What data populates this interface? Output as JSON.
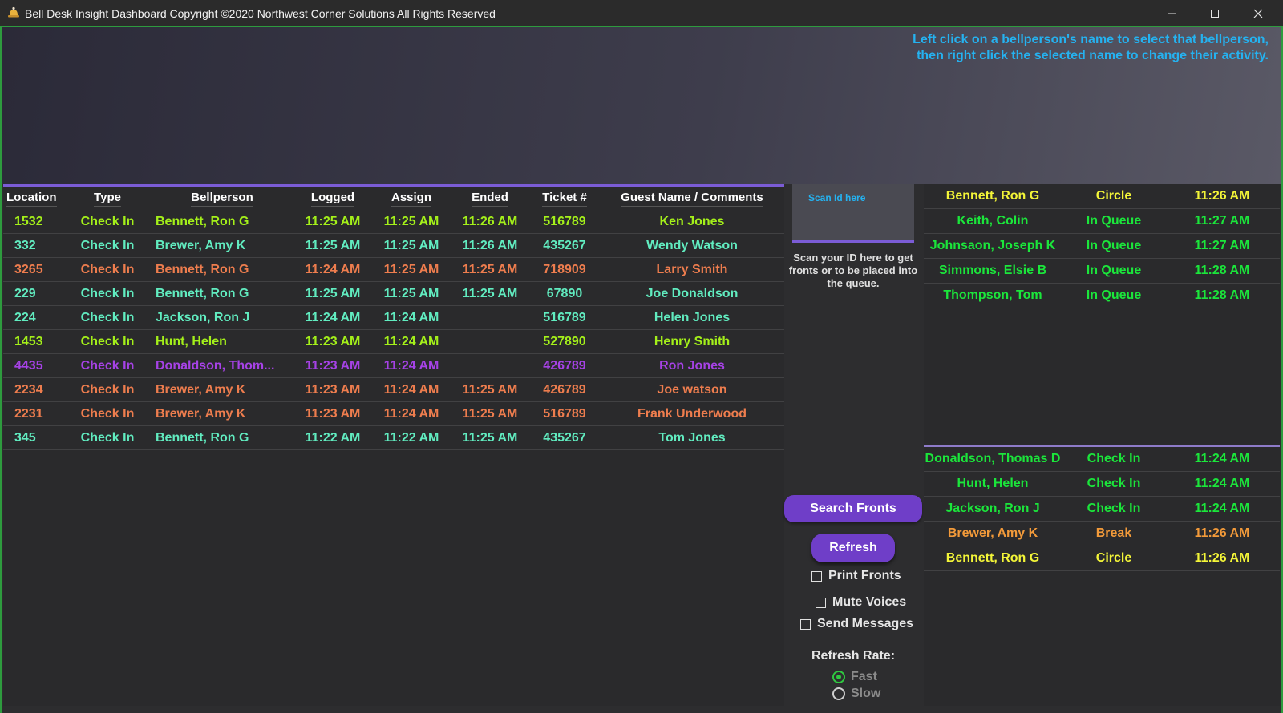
{
  "window": {
    "title": "Bell Desk Insight Dashboard Copyright ©2020 Northwest Corner Solutions All Rights Reserved",
    "app_icon": "bell-icon",
    "controls": [
      "minimize-icon",
      "maximize-icon",
      "close-icon"
    ]
  },
  "instructions": {
    "line1": "Left click on a bellperson's name to select that bellperson,",
    "line2": "then right click the selected name to change their activity."
  },
  "grid": {
    "columns": [
      "Location",
      "Type",
      "Bellperson",
      "Logged",
      "Assign",
      "Ended",
      "Ticket #",
      "Guest Name / Comments"
    ],
    "rows": [
      {
        "location": "1532",
        "type": "Check In",
        "bellperson": "Bennett, Ron G",
        "logged": "11:25 AM",
        "assign": "11:25 AM",
        "ended": "11:26 AM",
        "ticket": "516789",
        "guest": "Ken Jones",
        "color": "lime"
      },
      {
        "location": "332",
        "type": "Check In",
        "bellperson": "Brewer, Amy K",
        "logged": "11:25 AM",
        "assign": "11:25 AM",
        "ended": "11:26 AM",
        "ticket": "435267",
        "guest": "Wendy Watson",
        "color": "aqua"
      },
      {
        "location": "3265",
        "type": "Check In",
        "bellperson": "Bennett, Ron G",
        "logged": "11:24 AM",
        "assign": "11:25 AM",
        "ended": "11:25 AM",
        "ticket": "718909",
        "guest": "Larry Smith",
        "color": "orange"
      },
      {
        "location": "229",
        "type": "Check In",
        "bellperson": "Bennett, Ron G",
        "logged": "11:25 AM",
        "assign": "11:25 AM",
        "ended": "11:25 AM",
        "ticket": "67890",
        "guest": "Joe Donaldson",
        "color": "aqua"
      },
      {
        "location": "224",
        "type": "Check In",
        "bellperson": "Jackson, Ron J",
        "logged": "11:24 AM",
        "assign": "11:24 AM",
        "ended": "",
        "ticket": "516789",
        "guest": "Helen Jones",
        "color": "aqua"
      },
      {
        "location": "1453",
        "type": "Check In",
        "bellperson": "Hunt, Helen",
        "logged": "11:23 AM",
        "assign": "11:24 AM",
        "ended": "",
        "ticket": "527890",
        "guest": "Henry Smith",
        "color": "lime"
      },
      {
        "location": "4435",
        "type": "Check In",
        "bellperson": "Donaldson, Thom...",
        "logged": "11:23 AM",
        "assign": "11:24 AM",
        "ended": "",
        "ticket": "426789",
        "guest": "Ron Jones",
        "color": "purple"
      },
      {
        "location": "2234",
        "type": "Check In",
        "bellperson": "Brewer, Amy K",
        "logged": "11:23 AM",
        "assign": "11:24 AM",
        "ended": "11:25 AM",
        "ticket": "426789",
        "guest": "Joe watson",
        "color": "orange"
      },
      {
        "location": "2231",
        "type": "Check In",
        "bellperson": "Brewer, Amy K",
        "logged": "11:23 AM",
        "assign": "11:24 AM",
        "ended": "11:25 AM",
        "ticket": "516789",
        "guest": "Frank Underwood",
        "color": "orange"
      },
      {
        "location": "345",
        "type": "Check In",
        "bellperson": "Bennett, Ron G",
        "logged": "11:22 AM",
        "assign": "11:22 AM",
        "ended": "11:25 AM",
        "ticket": "435267",
        "guest": "Tom Jones",
        "color": "aqua"
      }
    ]
  },
  "scan": {
    "placeholder": "Scan Id here",
    "help": "Scan your ID here to get fronts or to be placed into the queue."
  },
  "buttons": {
    "search_fronts": "Search Fronts",
    "refresh": "Refresh"
  },
  "options": {
    "print_fronts": "Print Fronts",
    "mute_voices": "Mute Voices",
    "send_messages": "Send Messages",
    "refresh_rate_label": "Refresh Rate:",
    "fast": "Fast",
    "slow": "Slow",
    "selected_rate": "Fast"
  },
  "queue": [
    {
      "name": "Bennett, Ron G",
      "activity": "Circle",
      "time": "11:26 AM",
      "color": "yellow"
    },
    {
      "name": "Keith, Colin",
      "activity": "In Queue",
      "time": "11:27 AM",
      "color": "green"
    },
    {
      "name": "Johnsaon, Joseph K",
      "activity": "In Queue",
      "time": "11:27 AM",
      "color": "green"
    },
    {
      "name": "Simmons, Elsie B",
      "activity": "In Queue",
      "time": "11:28 AM",
      "color": "green"
    },
    {
      "name": "Thompson, Tom",
      "activity": "In Queue",
      "time": "11:28 AM",
      "color": "green"
    }
  ],
  "active": [
    {
      "name": "Donaldson, Thomas  D",
      "activity": "Check In",
      "time": "11:24 AM",
      "color": "green"
    },
    {
      "name": "Hunt, Helen",
      "activity": "Check In",
      "time": "11:24 AM",
      "color": "green"
    },
    {
      "name": "Jackson, Ron J",
      "activity": "Check In",
      "time": "11:24 AM",
      "color": "green"
    },
    {
      "name": "Brewer, Amy K",
      "activity": "Break",
      "time": "11:26 AM",
      "color": "amber"
    },
    {
      "name": "Bennett, Ron G",
      "activity": "Circle",
      "time": "11:26 AM",
      "color": "yellow"
    }
  ],
  "colors": {
    "lime": "#a4f01a",
    "aqua": "#61ecc0",
    "orange": "#ee7d4e",
    "purple": "#a642e6",
    "green": "#1be63b",
    "yellow": "#f3f538",
    "amber": "#f29a3a",
    "accent": "#6f3ec8",
    "frame": "#2e9b3e",
    "info": "#25b2f0"
  }
}
